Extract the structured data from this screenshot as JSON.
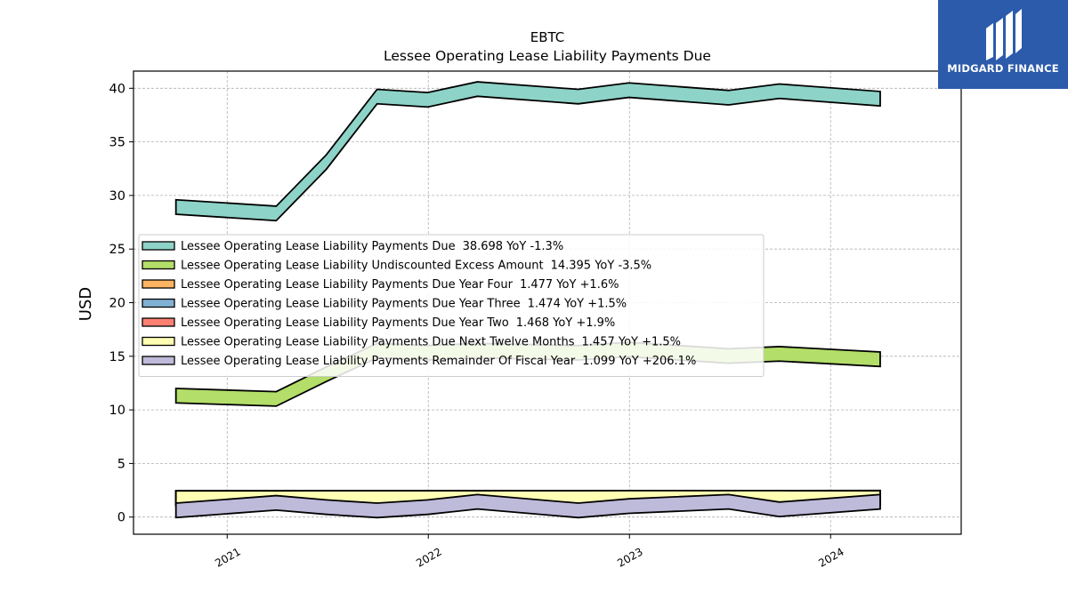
{
  "chart_data": {
    "type": "area",
    "title": "EBTC",
    "subtitle": "Lessee Operating Lease Liability Payments Due",
    "xlabel": "",
    "ylabel": "USD",
    "ylim": [
      -1.6,
      41.6
    ],
    "yticks": [
      0,
      5,
      10,
      15,
      20,
      25,
      30,
      35,
      40
    ],
    "xlim": [
      "2020-07-15",
      "2024-08-25"
    ],
    "xticks": [
      "2021",
      "2022",
      "2023",
      "2024"
    ],
    "grid": true,
    "legend_position": "center-left",
    "x": [
      "2020-09-30",
      "2021-03-31",
      "2021-06-30",
      "2021-09-30",
      "2021-12-31",
      "2022-03-31",
      "2022-09-30",
      "2022-12-31",
      "2023-06-30",
      "2023-09-30",
      "2024-03-31"
    ],
    "series": [
      {
        "name": "Lessee Operating Lease Liability Payments Due",
        "legend_value": "38.698 YoY -1.3%",
        "color": "#8dd3c7",
        "values": [
          28.6,
          28.0,
          32.8,
          38.9,
          38.6,
          39.6,
          38.9,
          39.5,
          38.8,
          39.4,
          38.7
        ]
      },
      {
        "name": "Lessee Operating Lease Liability Undiscounted Excess Amount",
        "legend_value": "14.395 YoY -3.5%",
        "color": "#b3de69",
        "values": [
          11.0,
          10.7,
          13.0,
          15.2,
          15.0,
          15.2,
          15.0,
          15.3,
          14.7,
          14.9,
          14.4
        ]
      },
      {
        "name": "Lessee Operating Lease Liability Payments Due Year Four",
        "legend_value": "1.477 YoY +1.6%",
        "color": "#fdb462",
        "values": [
          1.45,
          1.45,
          1.46,
          1.46,
          1.46,
          1.47,
          1.47,
          1.47,
          1.47,
          1.47,
          1.477
        ]
      },
      {
        "name": "Lessee Operating Lease Liability Payments Due Year Three",
        "legend_value": "1.474 YoY +1.5%",
        "color": "#80b1d3",
        "values": [
          1.45,
          1.45,
          1.46,
          1.46,
          1.46,
          1.46,
          1.47,
          1.47,
          1.47,
          1.47,
          1.474
        ]
      },
      {
        "name": "Lessee Operating Lease Liability Payments Due Year Two",
        "legend_value": "1.468 YoY +1.9%",
        "color": "#fb8072",
        "values": [
          1.44,
          1.44,
          1.45,
          1.45,
          1.46,
          1.46,
          1.46,
          1.46,
          1.46,
          1.47,
          1.468
        ]
      },
      {
        "name": "Lessee Operating Lease Liability Payments Due Next Twelve Months",
        "legend_value": "1.457 YoY +1.5%",
        "color": "#ffffb3",
        "values": [
          1.44,
          1.44,
          1.45,
          1.45,
          1.45,
          1.45,
          1.45,
          1.46,
          1.46,
          1.46,
          1.457
        ]
      },
      {
        "name": "Lessee Operating Lease Liability Payments Remainder Of Fiscal Year",
        "legend_value": "1.099 YoY +206.1%",
        "color": "#bebada",
        "values": [
          0.3,
          1.0,
          0.6,
          0.3,
          0.6,
          1.1,
          0.3,
          0.7,
          1.1,
          0.4,
          1.1
        ]
      }
    ]
  },
  "branding": {
    "name": "MIDGARD FINANCE",
    "background": "#2c5bab"
  }
}
